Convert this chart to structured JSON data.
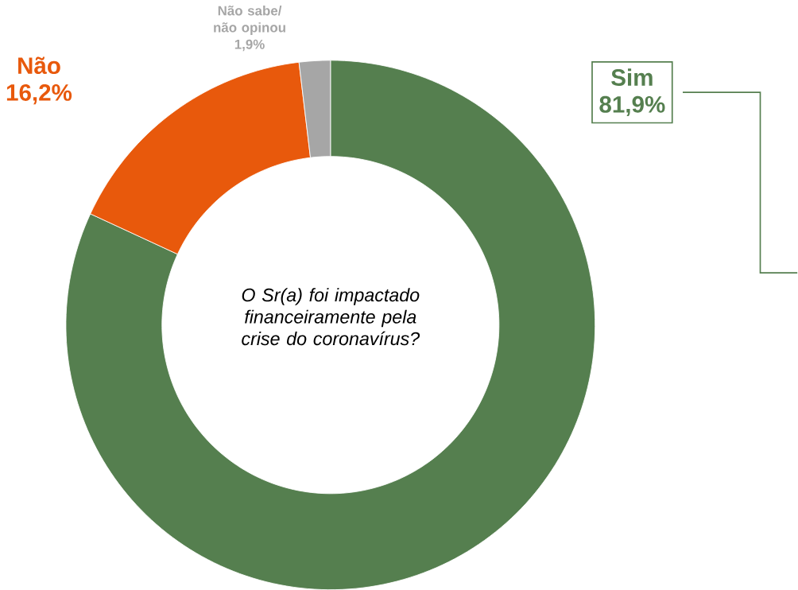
{
  "chart_data": {
    "type": "donut",
    "categories": [
      "Sim",
      "Não",
      "Não sabe/ não opinou"
    ],
    "values": [
      81.9,
      16.2,
      1.9
    ],
    "colors": [
      "#557f4f",
      "#e8590c",
      "#a6a6a6"
    ],
    "value_labels": [
      "81,9%",
      "16,2%",
      "1,9%"
    ],
    "annotations": [
      "O Sr(a) foi impactado financeiramente pela crise do coronavírus?"
    ]
  }
}
